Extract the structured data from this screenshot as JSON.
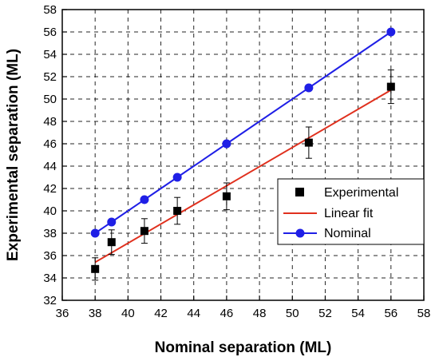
{
  "chart_data": {
    "type": "scatter",
    "xlabel": "Nominal separation (ML)",
    "ylabel": "Experimental separation (ML)",
    "xlim": [
      36,
      58
    ],
    "ylim": [
      32,
      58
    ],
    "x_ticks": [
      36,
      38,
      40,
      42,
      44,
      46,
      48,
      50,
      52,
      54,
      56,
      58
    ],
    "y_ticks": [
      32,
      34,
      36,
      38,
      40,
      42,
      44,
      46,
      48,
      50,
      52,
      54,
      56,
      58
    ],
    "grid": true,
    "legend_position": "right",
    "series": [
      {
        "name": "Experimental",
        "style": "square-markers-with-error-bars",
        "color": "#000000",
        "x": [
          38,
          39,
          41,
          43,
          46,
          51,
          56
        ],
        "y": [
          34.8,
          37.2,
          38.2,
          40.0,
          41.3,
          46.1,
          51.1
        ],
        "err": [
          1.0,
          1.1,
          1.1,
          1.2,
          1.2,
          1.4,
          1.5
        ]
      },
      {
        "name": "Linear fit",
        "style": "line",
        "color": "#e0301e",
        "x": [
          38,
          56
        ],
        "y": [
          35.4,
          50.8
        ]
      },
      {
        "name": "Nominal",
        "style": "line-with-circle-markers",
        "color": "#1f1fe6",
        "x": [
          38,
          39,
          41,
          43,
          46,
          51,
          56
        ],
        "y": [
          38,
          39,
          41,
          43,
          46,
          51,
          56
        ]
      }
    ]
  }
}
